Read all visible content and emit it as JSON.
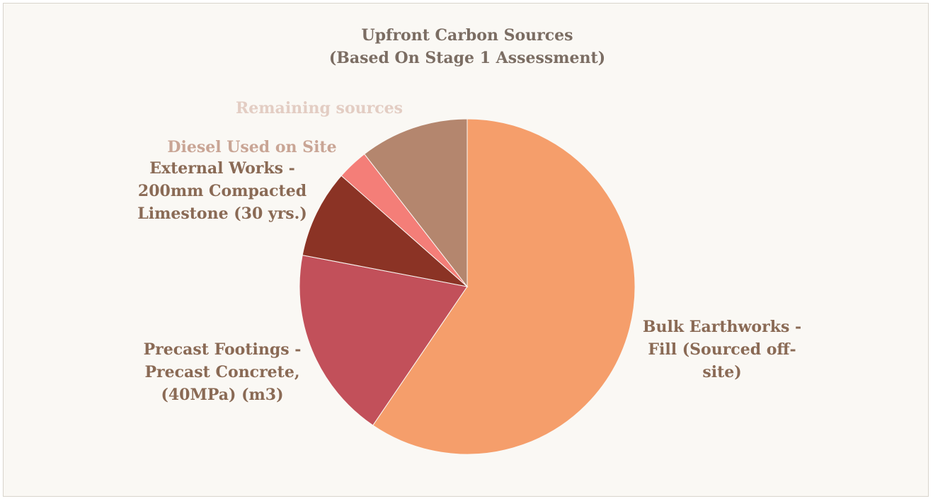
{
  "chart_data": {
    "type": "pie",
    "title_lines": [
      "Upfront Carbon Sources",
      "(Based On Stage 1 Assessment)"
    ],
    "legend": "none",
    "slices": [
      {
        "name": "Bulk Earthworks - Fill (Sourced off-site)",
        "label_lines": [
          "Bulk Earthworks -",
          "Fill (Sourced off-",
          "site)"
        ],
        "value": 59.5,
        "color": "#f59e6b",
        "label_color": "#8a6a55"
      },
      {
        "name": "Precast Footings - Precast Concrete, (40MPa) (m3)",
        "label_lines": [
          "Precast Footings -",
          "Precast Concrete,",
          "(40MPa) (m3)"
        ],
        "value": 18.5,
        "color": "#c2505a",
        "label_color": "#8a6a55"
      },
      {
        "name": "External Works - 200mm Compacted Limestone (30 yrs.)",
        "label_lines": [
          "External Works -",
          "200mm Compacted",
          "Limestone (30 yrs.)"
        ],
        "value": 8.5,
        "color": "#8b3325",
        "label_color": "#8a6a55"
      },
      {
        "name": "Diesel Used on Site",
        "label_lines": [
          "Diesel Used on Site"
        ],
        "value": 3,
        "color": "#f47e78",
        "label_color": "#c9a595"
      },
      {
        "name": "Remaining sources",
        "label_lines": [
          "Remaining sources"
        ],
        "value": 10.5,
        "color": "#b4866e",
        "label_color": "#e3cdc3"
      }
    ]
  }
}
